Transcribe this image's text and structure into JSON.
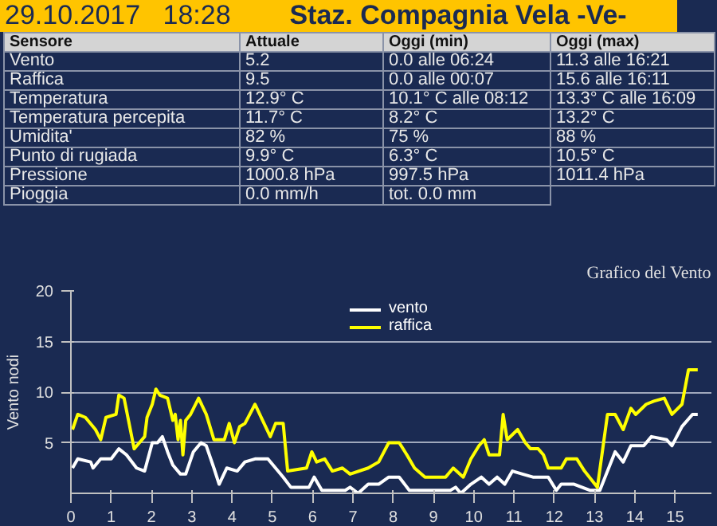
{
  "chart_data": [
    {
      "type": "other",
      "title": "29.10.2017   18:28",
      "subtitle": "Staz. Compagnia Vela -Ve-",
      "annotations": [
        "Sensore",
        "Attuale",
        "Oggi (min)",
        "Oggi (max)",
        "Vento",
        "5.2",
        "0.0 alle   06:24",
        "11.3 alle   16:21",
        "Raffica",
        "9.5",
        "0.0 alle   00:07",
        "15.6 alle   16:11",
        "Temperatura",
        "12.9° C",
        "10.1° C   alle 08:12",
        "13.3° C   alle 16:09",
        "Temperatura percepita",
        "11.7° C",
        "8.2° C",
        "13.2° C",
        "Umidita'",
        "82 %",
        "75 %",
        "88 %",
        "Punto di rugiada",
        "9.9° C",
        "6.3° C",
        "10.5° C",
        "Pressione",
        "1000.8 hPa",
        "997.5 hPa",
        "1011.4 hPa",
        "Pioggia",
        "0.0 mm/h",
        "tot. 0.0 mm"
      ]
    },
    {
      "type": "line",
      "title": "Grafico del Vento",
      "ylabel": "Vento nodi",
      "xlim": [
        0,
        15.9
      ],
      "xticks": [
        0,
        1,
        2,
        3,
        4,
        5,
        6,
        7,
        8,
        9,
        10,
        11,
        12,
        13,
        14,
        15
      ],
      "ylim": [
        0,
        20
      ],
      "yticks": [
        5,
        10,
        15,
        20
      ],
      "grid": "y",
      "legend": "top",
      "marker": "none",
      "line_style": "solid",
      "series": [
        {
          "name": "vento",
          "color": "#ffffff",
          "x": [
            0.04,
            0.17,
            0.49,
            0.55,
            0.74,
            1.0,
            1.19,
            1.38,
            1.63,
            1.83,
            2.02,
            2.15,
            2.27,
            2.4,
            2.53,
            2.72,
            2.85,
            3.04,
            3.23,
            3.36,
            3.55,
            3.68,
            3.87,
            4.13,
            4.32,
            4.57,
            4.89,
            5.08,
            5.27,
            5.46,
            5.91,
            6.04,
            6.23,
            6.81,
            6.93,
            7.13,
            7.38,
            7.64,
            7.89,
            8.15,
            8.4,
            9.42,
            9.55,
            9.68,
            9.93,
            10.19,
            10.38,
            10.58,
            10.77,
            10.96,
            11.21,
            11.47,
            11.85,
            12.05,
            12.17,
            12.49,
            12.88,
            13.13,
            13.51,
            13.71,
            13.9,
            14.22,
            14.41,
            14.79,
            14.92,
            15.17,
            15.43,
            15.56
          ],
          "values": [
            2.5,
            3.4,
            3.1,
            2.5,
            3.4,
            3.4,
            4.4,
            3.8,
            2.5,
            2.2,
            5.0,
            5.0,
            5.6,
            4.1,
            2.8,
            1.9,
            1.9,
            4.1,
            5.0,
            4.7,
            2.5,
            0.9,
            2.5,
            2.2,
            3.1,
            3.4,
            3.4,
            2.5,
            1.6,
            0.6,
            0.6,
            1.6,
            0.3,
            0.3,
            0.6,
            0,
            0.9,
            0.9,
            1.6,
            1.6,
            0.3,
            0.3,
            0.6,
            0,
            0.9,
            1.6,
            0.9,
            1.6,
            0.9,
            2.2,
            1.9,
            1.6,
            1.6,
            0.3,
            0.9,
            0.9,
            0.3,
            0.3,
            4.1,
            3.1,
            4.7,
            4.7,
            5.6,
            5.3,
            4.7,
            6.6,
            7.8,
            7.8
          ]
        },
        {
          "name": "raffica",
          "color": "#ffff00",
          "x": [
            0.04,
            0.17,
            0.36,
            0.61,
            0.74,
            0.87,
            1.12,
            1.19,
            1.32,
            1.51,
            1.57,
            1.7,
            1.83,
            1.89,
            2.02,
            2.11,
            2.21,
            2.4,
            2.53,
            2.59,
            2.66,
            2.72,
            2.78,
            2.85,
            2.97,
            3.17,
            3.36,
            3.55,
            3.81,
            3.93,
            4.06,
            4.19,
            4.32,
            4.57,
            4.76,
            4.95,
            5.08,
            5.27,
            5.38,
            5.85,
            5.98,
            6.1,
            6.3,
            6.49,
            6.74,
            6.93,
            7.38,
            7.64,
            7.89,
            8.15,
            8.34,
            8.53,
            8.79,
            9.3,
            9.49,
            9.74,
            9.93,
            10.13,
            10.26,
            10.38,
            10.64,
            10.73,
            10.83,
            11.09,
            11.28,
            11.41,
            11.6,
            11.73,
            11.85,
            12.17,
            12.3,
            12.56,
            12.75,
            13.07,
            13.32,
            13.51,
            13.71,
            13.9,
            14.02,
            14.28,
            14.47,
            14.73,
            14.92,
            15.17,
            15.33,
            15.56
          ],
          "values": [
            6.3,
            7.8,
            7.5,
            6.3,
            5.3,
            7.5,
            7.8,
            9.7,
            9.4,
            5.6,
            4.4,
            5.0,
            5.6,
            7.5,
            8.8,
            10.3,
            9.7,
            9.4,
            7.2,
            7.8,
            5.3,
            7.2,
            3.8,
            7.2,
            7.8,
            9.4,
            7.8,
            5.3,
            5.3,
            6.9,
            5.0,
            6.6,
            6.9,
            8.8,
            7.2,
            5.6,
            6.9,
            6.9,
            2.2,
            2.5,
            4.1,
            3.1,
            3.4,
            2.2,
            2.5,
            1.9,
            2.5,
            3.1,
            5.0,
            5.0,
            3.8,
            2.5,
            1.6,
            1.6,
            2.5,
            1.6,
            3.4,
            4.7,
            5.3,
            3.8,
            3.8,
            7.8,
            5.3,
            6.3,
            5.0,
            4.4,
            4.4,
            3.8,
            2.5,
            2.5,
            3.4,
            3.4,
            2.2,
            0.6,
            7.8,
            7.8,
            6.3,
            8.4,
            7.8,
            8.8,
            9.1,
            9.4,
            7.8,
            8.8,
            12.2,
            12.2
          ]
        }
      ]
    }
  ]
}
